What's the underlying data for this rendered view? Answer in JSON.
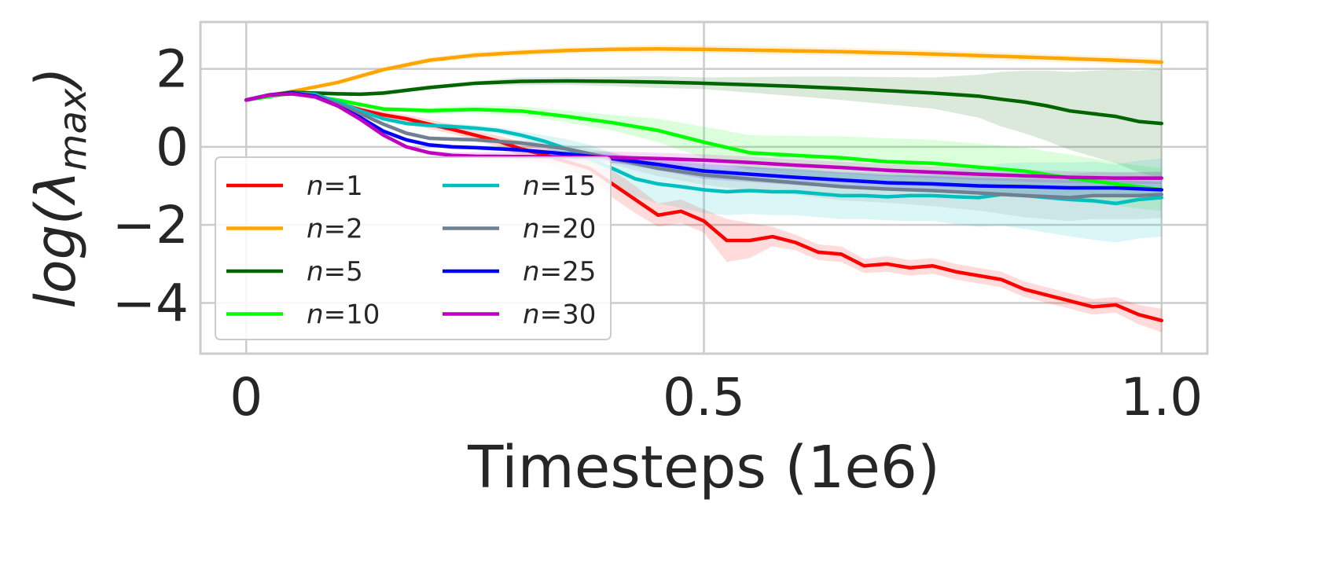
{
  "chart_data": {
    "type": "line",
    "xlabel": "Timesteps (1e6)",
    "ylabel": {
      "base": "log(λ",
      "sub": "max",
      "close": ")"
    },
    "xlim": [
      -0.05,
      1.05
    ],
    "ylim": [
      -5.3,
      3.2
    ],
    "xticks": [
      {
        "value": 0,
        "label": "0"
      },
      {
        "value": 0.5,
        "label": "0.5"
      },
      {
        "value": 1.0,
        "label": "1.0"
      }
    ],
    "yticks": [
      {
        "value": 2,
        "label": "2"
      },
      {
        "value": 0,
        "label": "0"
      },
      {
        "value": -2,
        "label": "−2"
      },
      {
        "value": -4,
        "label": "−4"
      }
    ],
    "grid": true,
    "legend": {
      "placement": "lower-left",
      "columns": 2,
      "var": "n",
      "eq": "="
    },
    "series": [
      {
        "name": "1",
        "color": "#ff0000",
        "x": [
          0,
          0.025,
          0.05,
          0.075,
          0.1,
          0.125,
          0.15,
          0.175,
          0.2,
          0.225,
          0.25,
          0.275,
          0.3,
          0.325,
          0.35,
          0.375,
          0.4,
          0.425,
          0.45,
          0.475,
          0.5,
          0.525,
          0.55,
          0.575,
          0.6,
          0.625,
          0.65,
          0.675,
          0.7,
          0.725,
          0.75,
          0.775,
          0.8,
          0.825,
          0.85,
          0.875,
          0.9,
          0.925,
          0.95,
          0.975,
          1.0
        ],
        "y": [
          1.2,
          1.33,
          1.36,
          1.3,
          1.12,
          0.95,
          0.82,
          0.72,
          0.58,
          0.45,
          0.3,
          0.15,
          -0.05,
          -0.2,
          -0.38,
          -0.55,
          -0.95,
          -1.35,
          -1.75,
          -1.65,
          -1.9,
          -2.4,
          -2.4,
          -2.3,
          -2.45,
          -2.7,
          -2.75,
          -3.05,
          -3.0,
          -3.1,
          -3.05,
          -3.2,
          -3.3,
          -3.4,
          -3.65,
          -3.8,
          -3.95,
          -4.1,
          -4.05,
          -4.3,
          -4.45
        ],
        "band": [
          0.05,
          0.05,
          0.05,
          0.05,
          0.05,
          0.08,
          0.1,
          0.1,
          0.12,
          0.12,
          0.12,
          0.14,
          0.18,
          0.2,
          0.22,
          0.25,
          0.35,
          0.35,
          0.3,
          0.3,
          0.3,
          0.55,
          0.45,
          0.25,
          0.2,
          0.2,
          0.2,
          0.18,
          0.2,
          0.2,
          0.2,
          0.2,
          0.2,
          0.2,
          0.2,
          0.2,
          0.2,
          0.2,
          0.2,
          0.25,
          0.3
        ]
      },
      {
        "name": "2",
        "color": "#ffa500",
        "x": [
          0,
          0.05,
          0.1,
          0.15,
          0.2,
          0.25,
          0.3,
          0.35,
          0.4,
          0.45,
          0.5,
          0.55,
          0.6,
          0.65,
          0.7,
          0.75,
          0.8,
          0.85,
          0.9,
          0.95,
          1.0
        ],
        "y": [
          1.2,
          1.42,
          1.65,
          1.98,
          2.22,
          2.35,
          2.42,
          2.47,
          2.5,
          2.51,
          2.5,
          2.48,
          2.46,
          2.44,
          2.41,
          2.38,
          2.34,
          2.3,
          2.26,
          2.22,
          2.17
        ],
        "band": [
          0.03,
          0.04,
          0.05,
          0.06,
          0.07,
          0.08,
          0.08,
          0.08,
          0.08,
          0.1,
          0.1,
          0.1,
          0.1,
          0.1,
          0.1,
          0.1,
          0.1,
          0.1,
          0.1,
          0.1,
          0.1
        ]
      },
      {
        "name": "5",
        "color": "#006400",
        "x": [
          0,
          0.025,
          0.05,
          0.075,
          0.1,
          0.125,
          0.15,
          0.175,
          0.2,
          0.25,
          0.3,
          0.35,
          0.4,
          0.45,
          0.5,
          0.55,
          0.6,
          0.65,
          0.7,
          0.75,
          0.8,
          0.825,
          0.85,
          0.875,
          0.9,
          0.925,
          0.95,
          0.975,
          1.0
        ],
        "y": [
          1.2,
          1.33,
          1.4,
          1.38,
          1.36,
          1.35,
          1.38,
          1.45,
          1.52,
          1.63,
          1.68,
          1.69,
          1.68,
          1.66,
          1.63,
          1.59,
          1.55,
          1.5,
          1.44,
          1.38,
          1.3,
          1.22,
          1.15,
          1.05,
          0.92,
          0.85,
          0.78,
          0.65,
          0.6
        ],
        "band": [
          0.05,
          0.05,
          0.05,
          0.05,
          0.05,
          0.05,
          0.05,
          0.05,
          0.05,
          0.05,
          0.1,
          0.1,
          0.12,
          0.15,
          0.15,
          0.2,
          0.25,
          0.3,
          0.35,
          0.4,
          0.55,
          0.7,
          0.8,
          0.9,
          1.0,
          1.1,
          1.2,
          1.3,
          1.4
        ]
      },
      {
        "name": "10",
        "color": "#00ff00",
        "x": [
          0,
          0.05,
          0.1,
          0.15,
          0.2,
          0.25,
          0.3,
          0.35,
          0.4,
          0.45,
          0.5,
          0.55,
          0.6,
          0.65,
          0.7,
          0.75,
          0.8,
          0.85,
          0.9,
          0.95,
          1.0
        ],
        "y": [
          1.2,
          1.38,
          1.2,
          0.97,
          0.93,
          0.96,
          0.92,
          0.78,
          0.62,
          0.42,
          0.12,
          -0.15,
          -0.22,
          -0.28,
          -0.38,
          -0.42,
          -0.52,
          -0.62,
          -0.8,
          -0.95,
          -1.1
        ],
        "band": [
          0.05,
          0.05,
          0.05,
          0.05,
          0.08,
          0.1,
          0.12,
          0.15,
          0.2,
          0.3,
          0.4,
          0.45,
          0.5,
          0.55,
          0.6,
          0.6,
          0.6,
          0.6,
          0.6,
          0.55,
          0.55
        ]
      },
      {
        "name": "15",
        "color": "#00bfbf",
        "x": [
          0,
          0.025,
          0.05,
          0.075,
          0.1,
          0.125,
          0.15,
          0.175,
          0.2,
          0.225,
          0.25,
          0.275,
          0.3,
          0.325,
          0.35,
          0.375,
          0.4,
          0.425,
          0.45,
          0.475,
          0.5,
          0.525,
          0.55,
          0.575,
          0.6,
          0.625,
          0.65,
          0.675,
          0.7,
          0.725,
          0.75,
          0.775,
          0.8,
          0.825,
          0.85,
          0.875,
          0.9,
          0.925,
          0.95,
          0.975,
          1.0
        ],
        "y": [
          1.2,
          1.33,
          1.38,
          1.35,
          1.15,
          0.92,
          0.72,
          0.6,
          0.55,
          0.52,
          0.48,
          0.42,
          0.3,
          0.15,
          -0.05,
          -0.3,
          -0.55,
          -0.82,
          -0.95,
          -1.02,
          -1.1,
          -1.15,
          -1.12,
          -1.15,
          -1.15,
          -1.2,
          -1.25,
          -1.25,
          -1.28,
          -1.25,
          -1.25,
          -1.28,
          -1.3,
          -1.22,
          -1.25,
          -1.3,
          -1.35,
          -1.38,
          -1.45,
          -1.35,
          -1.3
        ],
        "band": [
          0.05,
          0.05,
          0.05,
          0.05,
          0.05,
          0.05,
          0.05,
          0.05,
          0.06,
          0.08,
          0.08,
          0.08,
          0.1,
          0.15,
          0.25,
          0.35,
          0.4,
          0.45,
          0.5,
          0.55,
          0.6,
          0.6,
          0.6,
          0.6,
          0.6,
          0.6,
          0.6,
          0.6,
          0.6,
          0.65,
          0.65,
          0.7,
          0.75,
          0.8,
          0.85,
          0.9,
          0.95,
          1.0,
          1.0,
          1.0,
          1.0
        ]
      },
      {
        "name": "20",
        "color": "#708090",
        "x": [
          0,
          0.025,
          0.05,
          0.075,
          0.1,
          0.125,
          0.15,
          0.175,
          0.2,
          0.225,
          0.25,
          0.3,
          0.35,
          0.4,
          0.45,
          0.5,
          0.55,
          0.6,
          0.65,
          0.7,
          0.75,
          0.8,
          0.85,
          0.9,
          0.925,
          0.95,
          0.975,
          1.0
        ],
        "y": [
          1.2,
          1.33,
          1.38,
          1.32,
          1.1,
          0.85,
          0.58,
          0.35,
          0.22,
          0.2,
          0.18,
          0.1,
          -0.05,
          -0.3,
          -0.55,
          -0.72,
          -0.82,
          -0.92,
          -1.02,
          -1.08,
          -1.12,
          -1.18,
          -1.25,
          -1.3,
          -1.25,
          -1.25,
          -1.25,
          -1.22
        ],
        "band": [
          0.05,
          0.05,
          0.05,
          0.05,
          0.05,
          0.05,
          0.05,
          0.05,
          0.05,
          0.05,
          0.05,
          0.08,
          0.1,
          0.15,
          0.2,
          0.25,
          0.3,
          0.3,
          0.35,
          0.35,
          0.4,
          0.45,
          0.55,
          0.6,
          0.6,
          0.6,
          0.6,
          0.6
        ]
      },
      {
        "name": "25",
        "color": "#0000ff",
        "x": [
          0,
          0.025,
          0.05,
          0.075,
          0.1,
          0.125,
          0.15,
          0.175,
          0.2,
          0.225,
          0.25,
          0.3,
          0.35,
          0.4,
          0.45,
          0.5,
          0.55,
          0.6,
          0.65,
          0.7,
          0.75,
          0.8,
          0.85,
          0.9,
          0.95,
          1.0
        ],
        "y": [
          1.2,
          1.33,
          1.38,
          1.3,
          1.05,
          0.75,
          0.4,
          0.18,
          0.05,
          0.0,
          -0.02,
          -0.08,
          -0.18,
          -0.3,
          -0.45,
          -0.62,
          -0.7,
          -0.78,
          -0.85,
          -0.92,
          -0.95,
          -1.0,
          -1.02,
          -1.05,
          -1.05,
          -1.1
        ],
        "band": [
          0.05,
          0.05,
          0.05,
          0.05,
          0.05,
          0.05,
          0.05,
          0.05,
          0.05,
          0.05,
          0.05,
          0.05,
          0.08,
          0.1,
          0.15,
          0.2,
          0.2,
          0.2,
          0.2,
          0.2,
          0.2,
          0.2,
          0.2,
          0.2,
          0.2,
          0.2
        ]
      },
      {
        "name": "30",
        "color": "#bf00bf",
        "x": [
          0,
          0.025,
          0.05,
          0.075,
          0.1,
          0.125,
          0.15,
          0.175,
          0.2,
          0.225,
          0.25,
          0.3,
          0.35,
          0.4,
          0.45,
          0.5,
          0.55,
          0.6,
          0.65,
          0.7,
          0.75,
          0.8,
          0.85,
          0.9,
          0.95,
          1.0
        ],
        "y": [
          1.2,
          1.33,
          1.36,
          1.28,
          1.05,
          0.7,
          0.3,
          0.0,
          -0.15,
          -0.22,
          -0.24,
          -0.25,
          -0.26,
          -0.27,
          -0.3,
          -0.34,
          -0.4,
          -0.47,
          -0.53,
          -0.6,
          -0.65,
          -0.7,
          -0.74,
          -0.78,
          -0.8,
          -0.8
        ],
        "band": [
          0.05,
          0.05,
          0.05,
          0.05,
          0.05,
          0.05,
          0.05,
          0.05,
          0.05,
          0.08,
          0.1,
          0.12,
          0.14,
          0.15,
          0.15,
          0.15,
          0.15,
          0.15,
          0.15,
          0.15,
          0.15,
          0.15,
          0.15,
          0.15,
          0.15,
          0.15
        ]
      }
    ]
  }
}
